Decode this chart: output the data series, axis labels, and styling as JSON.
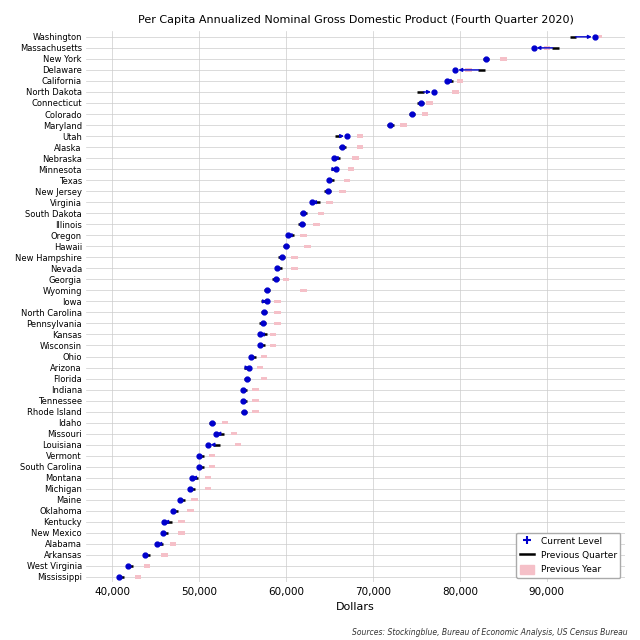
{
  "title": "Per Capita Annualized Nominal Gross Domestic Product (Fourth Quarter 2020)",
  "xlabel": "Dollars",
  "source": "Sources: Stockingblue, Bureau of Economic Analysis, US Census Bureau",
  "states": [
    "Washington",
    "Massachusetts",
    "New York",
    "Delaware",
    "California",
    "North Dakota",
    "Connecticut",
    "Colorado",
    "Maryland",
    "Utah",
    "Alaska",
    "Nebraska",
    "Minnesota",
    "Texas",
    "New Jersey",
    "Virginia",
    "South Dakota",
    "Illinois",
    "Oregon",
    "Hawaii",
    "New Hampshire",
    "Nevada",
    "Georgia",
    "Wyoming",
    "Iowa",
    "North Carolina",
    "Pennsylvania",
    "Kansas",
    "Wisconsin",
    "Ohio",
    "Arizona",
    "Florida",
    "Indiana",
    "Tennessee",
    "Rhode Island",
    "Idaho",
    "Missouri",
    "Louisiana",
    "Vermont",
    "South Carolina",
    "Montana",
    "Michigan",
    "Maine",
    "Oklahoma",
    "Kentucky",
    "New Mexico",
    "Alabama",
    "Arkansas",
    "West Virginia",
    "Mississippi"
  ],
  "current": [
    95500,
    88500,
    83000,
    79500,
    78500,
    77000,
    75500,
    74500,
    72000,
    67000,
    66500,
    65500,
    65800,
    65000,
    64800,
    63000,
    62000,
    61800,
    60200,
    60000,
    59500,
    59000,
    58800,
    57800,
    57800,
    57500,
    57300,
    57000,
    57000,
    56000,
    55800,
    55500,
    55000,
    55000,
    55200,
    51500,
    52000,
    51000,
    50000,
    50000,
    49200,
    49000,
    47800,
    47000,
    46000,
    45800,
    45200,
    43800,
    41800,
    40800
  ],
  "prev_quarter": [
    93000,
    91000,
    83000,
    82500,
    78800,
    75500,
    75500,
    74500,
    72000,
    66000,
    66500,
    65800,
    65500,
    65200,
    64800,
    63500,
    62000,
    61800,
    60500,
    60000,
    59500,
    59200,
    58800,
    57800,
    57500,
    57500,
    57300,
    57500,
    57200,
    56200,
    55500,
    55500,
    55200,
    55200,
    55200,
    51500,
    52500,
    52000,
    50200,
    50200,
    49500,
    49200,
    48000,
    47200,
    46500,
    46000,
    45500,
    44000,
    42000,
    41000
  ],
  "prev_year": [
    96000,
    90000,
    85000,
    81000,
    80000,
    79500,
    76500,
    76000,
    73500,
    68500,
    68500,
    68000,
    67500,
    67000,
    66500,
    65000,
    64000,
    63500,
    62000,
    62500,
    61000,
    61000,
    60000,
    62000,
    59000,
    59000,
    59000,
    58500,
    58500,
    57500,
    57000,
    57500,
    56500,
    56500,
    56500,
    53000,
    54000,
    54500,
    51500,
    51500,
    51000,
    51000,
    49500,
    49000,
    48000,
    48000,
    47000,
    46000,
    44000,
    43000
  ],
  "xlim": [
    37000,
    99000
  ],
  "xticks": [
    40000,
    50000,
    60000,
    70000,
    80000,
    90000
  ],
  "current_color": "#0000CD",
  "prev_quarter_color": "#000000",
  "prev_year_color": "#F5C0C8",
  "bg_color": "#F0F0F0"
}
